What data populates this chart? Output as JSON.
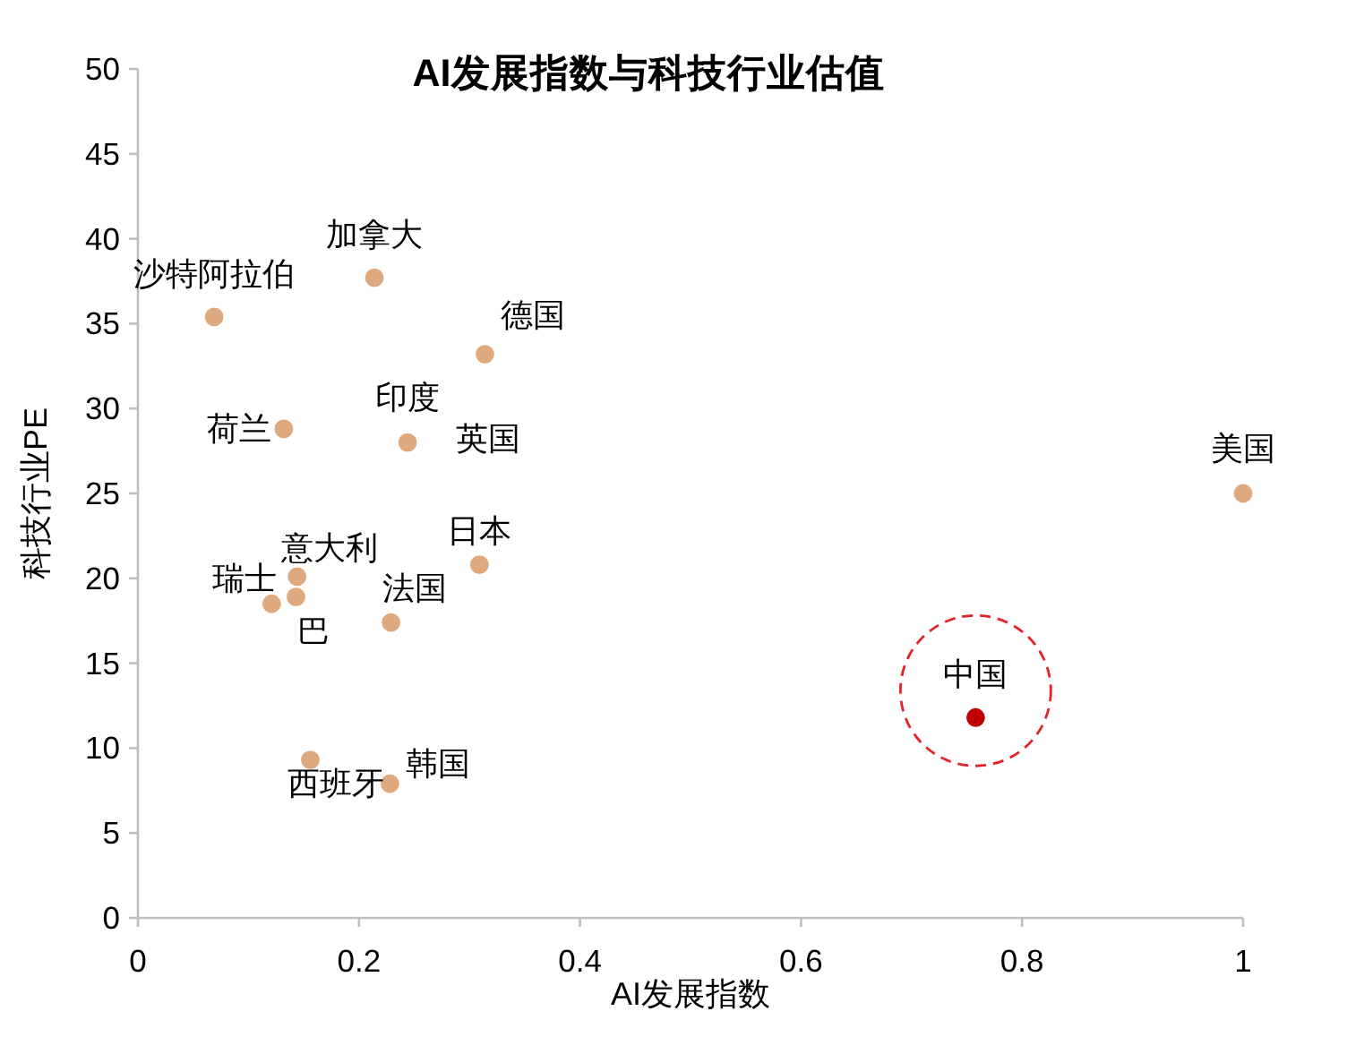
{
  "chart_data": {
    "type": "scatter",
    "title": "AI发展指数与科技行业估值",
    "xlabel": "AI发展指数",
    "ylabel": "科技行业PE",
    "xlim": [
      0,
      1
    ],
    "xticks": [
      0,
      0.2,
      0.4,
      0.6,
      0.8,
      1
    ],
    "ylim": [
      0,
      50
    ],
    "yticks": [
      0,
      5,
      10,
      15,
      20,
      25,
      30,
      35,
      40,
      45,
      50
    ],
    "x": [
      0.069,
      0.214,
      0.314,
      0.132,
      0.244,
      0.309,
      0.144,
      0.121,
      0.143,
      0.229,
      0.156,
      0.228,
      1.0,
      0.758
    ],
    "values": [
      35.4,
      37.7,
      33.2,
      28.8,
      28.0,
      20.8,
      20.1,
      18.5,
      18.9,
      17.4,
      9.3,
      7.9,
      25.0,
      11.8
    ],
    "colors": [
      "#dfa97f",
      "#dfa97f",
      "#dfa97f",
      "#dfa97f",
      "#dfa97f",
      "#dfa97f",
      "#dfa97f",
      "#dfa97f",
      "#dfa97f",
      "#dfa97f",
      "#dfa97f",
      "#dfa97f",
      "#dfa97f",
      "#c00000"
    ],
    "marker": "circle",
    "grid": false,
    "annotations": [
      {
        "text": "沙特阿拉伯",
        "x": 0.069,
        "y": 35.4
      },
      {
        "text": "加拿大",
        "x": 0.214,
        "y": 37.7
      },
      {
        "text": "德国",
        "x": 0.314,
        "y": 33.2
      },
      {
        "text": "荷兰",
        "x": 0.132,
        "y": 28.8
      },
      {
        "text": "印度",
        "x": 0.244,
        "y": 28.0
      },
      {
        "text": "英国",
        "x": 0.244,
        "y": 28.0
      },
      {
        "text": "日本",
        "x": 0.309,
        "y": 20.8
      },
      {
        "text": "意大利",
        "x": 0.144,
        "y": 20.1
      },
      {
        "text": "瑞士",
        "x": 0.121,
        "y": 18.5
      },
      {
        "text": "巴",
        "x": 0.143,
        "y": 18.9
      },
      {
        "text": "法国",
        "x": 0.229,
        "y": 17.4
      },
      {
        "text": "西班牙",
        "x": 0.156,
        "y": 9.3
      },
      {
        "text": "韩国",
        "x": 0.228,
        "y": 7.9
      },
      {
        "text": "美国",
        "x": 1.0,
        "y": 25.0
      },
      {
        "text": "中国",
        "x": 0.758,
        "y": 11.8
      }
    ]
  }
}
